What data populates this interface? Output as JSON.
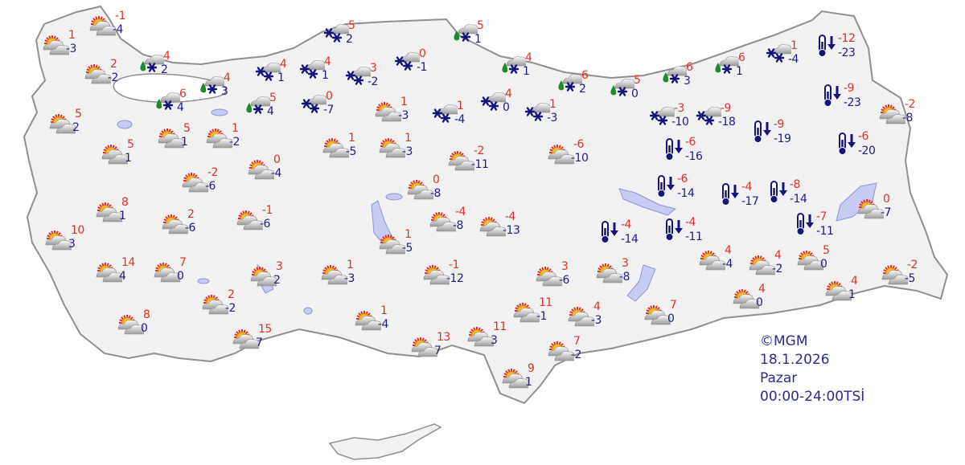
{
  "colors": {
    "max_temp": "#e0302a",
    "min_temp": "#1c1c8c",
    "land": "#f1f1f1",
    "border": "#9a9a9a",
    "water": "#c8cbf2"
  },
  "icon_legend": {
    "ps": "partly-sunny-icon",
    "sn": "snow-icon",
    "rs": "rain-snow-icon",
    "cold": "cold-thermometer-icon"
  },
  "stations": [
    {
      "type": "ps",
      "max": "-1",
      "min": "-4"
    },
    {
      "type": "ps",
      "max": "1",
      "min": "-3"
    },
    {
      "type": "ps",
      "max": "2",
      "min": "-2"
    },
    {
      "type": "rs",
      "max": "4",
      "min": "2"
    },
    {
      "type": "rs",
      "max": "6",
      "min": "4"
    },
    {
      "type": "rs",
      "max": "4",
      "min": "3"
    },
    {
      "type": "rs",
      "max": "5",
      "min": "4"
    },
    {
      "type": "sn",
      "max": "4",
      "min": "1"
    },
    {
      "type": "sn",
      "max": "4",
      "min": "1"
    },
    {
      "type": "sn",
      "max": "5",
      "min": "2"
    },
    {
      "type": "sn",
      "max": "0",
      "min": "-7"
    },
    {
      "type": "sn",
      "max": "3",
      "min": "-2"
    },
    {
      "type": "sn",
      "max": "0",
      "min": "-1"
    },
    {
      "type": "rs",
      "max": "5",
      "min": "1"
    },
    {
      "type": "ps",
      "max": "1",
      "min": "-3"
    },
    {
      "type": "sn",
      "max": "1",
      "min": "-4"
    },
    {
      "type": "sn",
      "max": "4",
      "min": "0"
    },
    {
      "type": "sn",
      "max": "1",
      "min": "-3"
    },
    {
      "type": "rs",
      "max": "4",
      "min": "1"
    },
    {
      "type": "rs",
      "max": "6",
      "min": "2"
    },
    {
      "type": "rs",
      "max": "5",
      "min": "0"
    },
    {
      "type": "rs",
      "max": "6",
      "min": "3"
    },
    {
      "type": "rs",
      "max": "6",
      "min": "1"
    },
    {
      "type": "sn",
      "max": "1",
      "min": "-4"
    },
    {
      "type": "cold",
      "max": "-12",
      "min": "-23"
    },
    {
      "type": "sn",
      "max": "-3",
      "min": "-10"
    },
    {
      "type": "sn",
      "max": "-9",
      "min": "-18"
    },
    {
      "type": "cold",
      "max": "-9",
      "min": "-19"
    },
    {
      "type": "cold",
      "max": "-9",
      "min": "-23"
    },
    {
      "type": "ps",
      "max": "-2",
      "min": "-8"
    },
    {
      "type": "cold",
      "max": "-6",
      "min": "-20"
    },
    {
      "type": "cold",
      "max": "-6",
      "min": "-16"
    },
    {
      "type": "ps",
      "max": "5",
      "min": "2"
    },
    {
      "type": "ps",
      "max": "5",
      "min": "1"
    },
    {
      "type": "ps",
      "max": "1",
      "min": "-2"
    },
    {
      "type": "ps",
      "max": "5",
      "min": "1"
    },
    {
      "type": "ps",
      "max": "1",
      "min": "-5"
    },
    {
      "type": "ps",
      "max": "1",
      "min": "-3"
    },
    {
      "type": "ps",
      "max": "0",
      "min": "-4"
    },
    {
      "type": "ps",
      "max": "-2",
      "min": "-11"
    },
    {
      "type": "ps",
      "max": "-6",
      "min": "-10"
    },
    {
      "type": "ps",
      "max": "-2",
      "min": "-6"
    },
    {
      "type": "ps",
      "max": "0",
      "min": "-8"
    },
    {
      "type": "cold",
      "max": "-6",
      "min": "-14"
    },
    {
      "type": "cold",
      "max": "-4",
      "min": "-17"
    },
    {
      "type": "cold",
      "max": "-8",
      "min": "-14"
    },
    {
      "type": "cold",
      "max": "-7",
      "min": "-11"
    },
    {
      "type": "ps",
      "max": "0",
      "min": "-7"
    },
    {
      "type": "ps",
      "max": "8",
      "min": "1"
    },
    {
      "type": "ps",
      "max": "2",
      "min": "-6"
    },
    {
      "type": "ps",
      "max": "-1",
      "min": "-6"
    },
    {
      "type": "ps",
      "max": "-4",
      "min": "-8"
    },
    {
      "type": "ps",
      "max": "-4",
      "min": "-13"
    },
    {
      "type": "cold",
      "max": "-4",
      "min": "-14"
    },
    {
      "type": "cold",
      "max": "-4",
      "min": "-11"
    },
    {
      "type": "ps",
      "max": "10",
      "min": "3"
    },
    {
      "type": "ps",
      "max": "1",
      "min": "-5"
    },
    {
      "type": "ps",
      "max": "14",
      "min": "4"
    },
    {
      "type": "ps",
      "max": "7",
      "min": "0"
    },
    {
      "type": "ps",
      "max": "3",
      "min": "2"
    },
    {
      "type": "ps",
      "max": "1",
      "min": "-3"
    },
    {
      "type": "ps",
      "max": "-1",
      "min": "-12"
    },
    {
      "type": "ps",
      "max": "3",
      "min": "-6"
    },
    {
      "type": "ps",
      "max": "3",
      "min": "-8"
    },
    {
      "type": "ps",
      "max": "4",
      "min": "-4"
    },
    {
      "type": "ps",
      "max": "4",
      "min": "-2"
    },
    {
      "type": "ps",
      "max": "5",
      "min": "0"
    },
    {
      "type": "ps",
      "max": "-2",
      "min": "-5"
    },
    {
      "type": "ps",
      "max": "2",
      "min": "-2"
    },
    {
      "type": "ps",
      "max": "1",
      "min": "-4"
    },
    {
      "type": "ps",
      "max": "11",
      "min": "-1"
    },
    {
      "type": "ps",
      "max": "4",
      "min": "-3"
    },
    {
      "type": "ps",
      "max": "7",
      "min": "0"
    },
    {
      "type": "ps",
      "max": "4",
      "min": "0"
    },
    {
      "type": "ps",
      "max": "4",
      "min": "1"
    },
    {
      "type": "ps",
      "max": "8",
      "min": "0"
    },
    {
      "type": "ps",
      "max": "15",
      "min": "7"
    },
    {
      "type": "ps",
      "max": "13",
      "min": "7"
    },
    {
      "type": "ps",
      "max": "11",
      "min": "3"
    },
    {
      "type": "ps",
      "max": "7",
      "min": "-2"
    },
    {
      "type": "ps",
      "max": "9",
      "min": "1"
    }
  ],
  "stamp": {
    "copyright": "©MGM",
    "date": "18.1.2026",
    "day": "Pazar",
    "period": "00:00-24:00TSİ"
  }
}
